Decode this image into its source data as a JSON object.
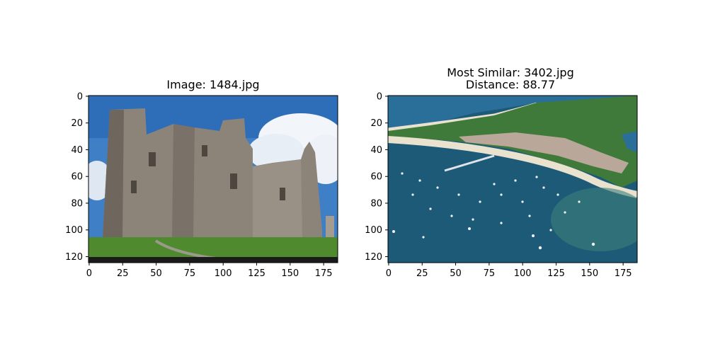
{
  "chart_data": [
    {
      "type": "image",
      "title": "Image: 1484.jpg",
      "x_ticks": [
        0,
        25,
        50,
        75,
        100,
        125,
        150,
        175
      ],
      "y_ticks": [
        0,
        20,
        40,
        60,
        80,
        100,
        120
      ],
      "xlim": [
        -0.5,
        185.5
      ],
      "ylim": [
        124.5,
        -0.5
      ],
      "y_inverted": true,
      "image": {
        "subject": "castle ruins",
        "colors": {
          "sky": "#3f7fc6",
          "cloud": "#f4f7fb",
          "stone": "#8c8379",
          "stone_dark": "#5f5850",
          "grass": "#4f8a2e"
        }
      }
    },
    {
      "type": "image",
      "title_lines": [
        "Most Similar: 3402.jpg",
        "Distance: 88.77"
      ],
      "x_ticks": [
        0,
        25,
        50,
        75,
        100,
        125,
        150,
        175
      ],
      "y_ticks": [
        0,
        20,
        40,
        60,
        80,
        100,
        120
      ],
      "xlim": [
        -0.5,
        185.5
      ],
      "ylim": [
        124.5,
        -0.5
      ],
      "y_inverted": true,
      "image": {
        "subject": "aerial coastline with boats",
        "colors": {
          "sea": "#1d5a78",
          "sea_far": "#2a6f9a",
          "sand": "#e9e2cf",
          "land": "#3f7a3a",
          "town": "#b9a89a"
        }
      }
    }
  ]
}
